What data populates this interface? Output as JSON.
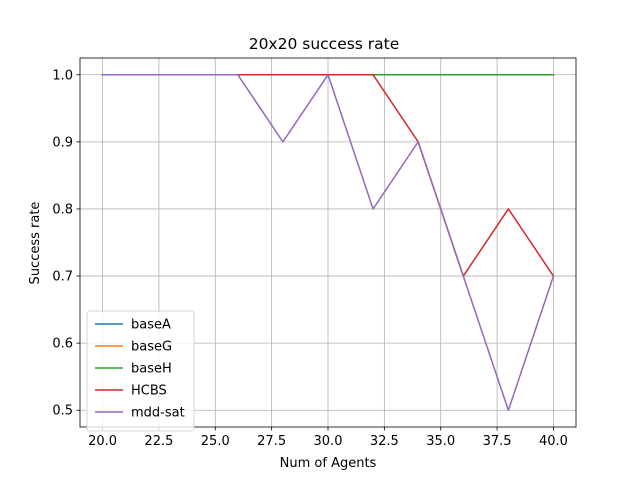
{
  "chart_data": {
    "type": "line",
    "title": "20x20 success rate",
    "xlabel": "Num of Agents",
    "ylabel": "Success rate",
    "xlim": [
      19.0,
      41.0
    ],
    "ylim": [
      0.475,
      1.025
    ],
    "xticks": [
      20.0,
      22.5,
      25.0,
      27.5,
      30.0,
      32.5,
      35.0,
      37.5,
      40.0
    ],
    "xtick_labels": [
      "20.0",
      "22.5",
      "25.0",
      "27.5",
      "30.0",
      "32.5",
      "35.0",
      "37.5",
      "40.0"
    ],
    "yticks": [
      0.5,
      0.6,
      0.7,
      0.8,
      0.9,
      1.0
    ],
    "ytick_labels": [
      "0.5",
      "0.6",
      "0.7",
      "0.8",
      "0.9",
      "1.0"
    ],
    "grid": true,
    "legend_position": "lower-left",
    "x": [
      20,
      22,
      24,
      26,
      28,
      30,
      32,
      34,
      36,
      38,
      40
    ],
    "series": [
      {
        "name": "baseA",
        "color": "#1f77b4",
        "values": [
          1.0,
          1.0,
          1.0,
          1.0,
          1.0,
          1.0,
          1.0,
          1.0,
          1.0,
          1.0,
          1.0
        ]
      },
      {
        "name": "baseG",
        "color": "#ff7f0e",
        "values": [
          1.0,
          1.0,
          1.0,
          1.0,
          1.0,
          1.0,
          1.0,
          1.0,
          1.0,
          1.0,
          1.0
        ]
      },
      {
        "name": "baseH",
        "color": "#2ca02c",
        "values": [
          1.0,
          1.0,
          1.0,
          1.0,
          1.0,
          1.0,
          1.0,
          1.0,
          1.0,
          1.0,
          1.0
        ]
      },
      {
        "name": "HCBS",
        "color": "#d62728",
        "values": [
          1.0,
          1.0,
          1.0,
          1.0,
          1.0,
          1.0,
          1.0,
          0.9,
          0.7,
          0.8,
          0.7
        ]
      },
      {
        "name": "mdd-sat",
        "color": "#9467bd",
        "values": [
          1.0,
          1.0,
          1.0,
          1.0,
          0.9,
          1.0,
          0.8,
          0.9,
          0.7,
          0.5,
          0.7
        ]
      }
    ]
  }
}
